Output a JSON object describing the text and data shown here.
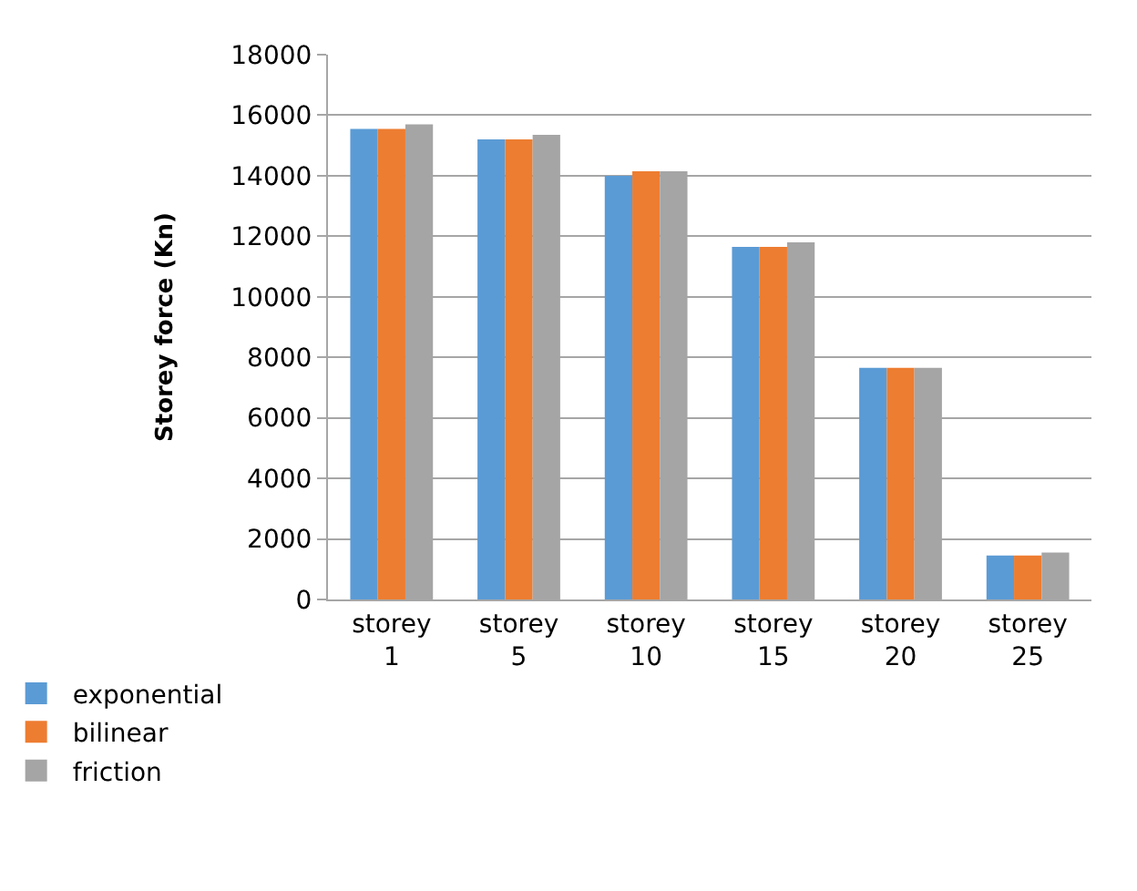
{
  "chart_data": {
    "type": "bar",
    "ylabel": "Storey force (Kn)",
    "categories": [
      "storey 1",
      "storey 5",
      "storey 10",
      "storey 15",
      "storey 20",
      "storey 25"
    ],
    "series": [
      {
        "name": "exponential",
        "color": "#5b9bd5",
        "values": [
          15550,
          15200,
          14000,
          11650,
          7650,
          1450
        ]
      },
      {
        "name": "bilinear",
        "color": "#ed7d31",
        "values": [
          15550,
          15200,
          14150,
          11650,
          7650,
          1450
        ]
      },
      {
        "name": "friction",
        "color": "#a5a5a5",
        "values": [
          15700,
          15350,
          14150,
          11800,
          7650,
          1550
        ]
      }
    ],
    "ylim": [
      0,
      18000
    ],
    "yticks": [
      0,
      2000,
      4000,
      6000,
      8000,
      10000,
      12000,
      14000,
      16000,
      18000
    ],
    "grid": "y",
    "legend": "bottom left"
  }
}
